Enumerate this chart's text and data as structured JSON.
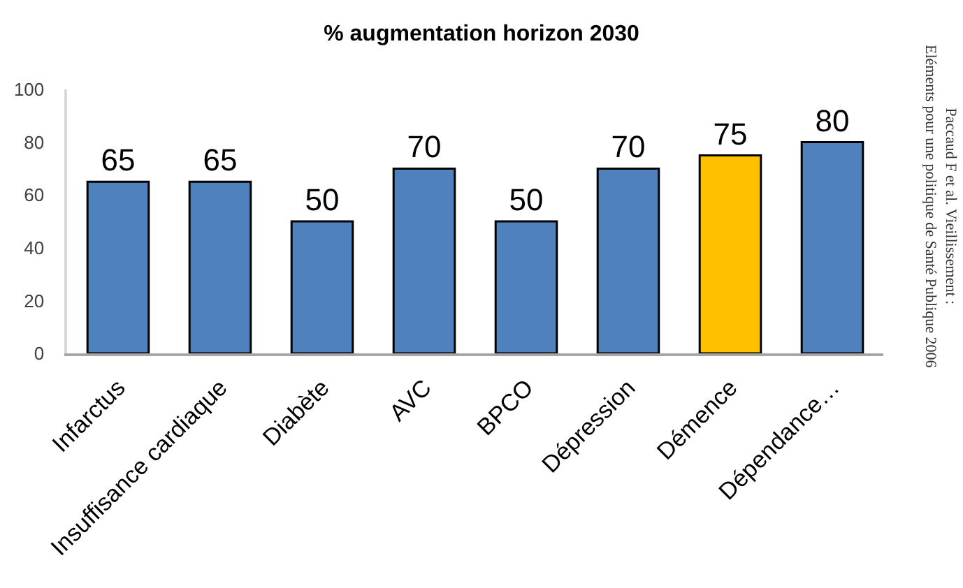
{
  "chart_data": {
    "type": "bar",
    "title": "% augmentation horizon 2030",
    "categories": [
      "Infarctus",
      "Insuffisance cardiaque",
      "Diabète",
      "AVC",
      "BPCO",
      "Dépression",
      "Démence",
      "Dépendance…"
    ],
    "values": [
      65,
      65,
      50,
      70,
      50,
      70,
      75,
      80
    ],
    "colors": [
      "#4f81bd",
      "#4f81bd",
      "#4f81bd",
      "#4f81bd",
      "#4f81bd",
      "#4f81bd",
      "#ffc000",
      "#4f81bd"
    ],
    "ylim": [
      0,
      100
    ],
    "yticks": [
      0,
      20,
      40,
      60,
      80,
      100
    ],
    "grid": false,
    "data_labels": true,
    "annotations": [
      "Paccaud F et al. Vieillissement :\nEléments pour une politique de Santé Publique 2006"
    ]
  }
}
